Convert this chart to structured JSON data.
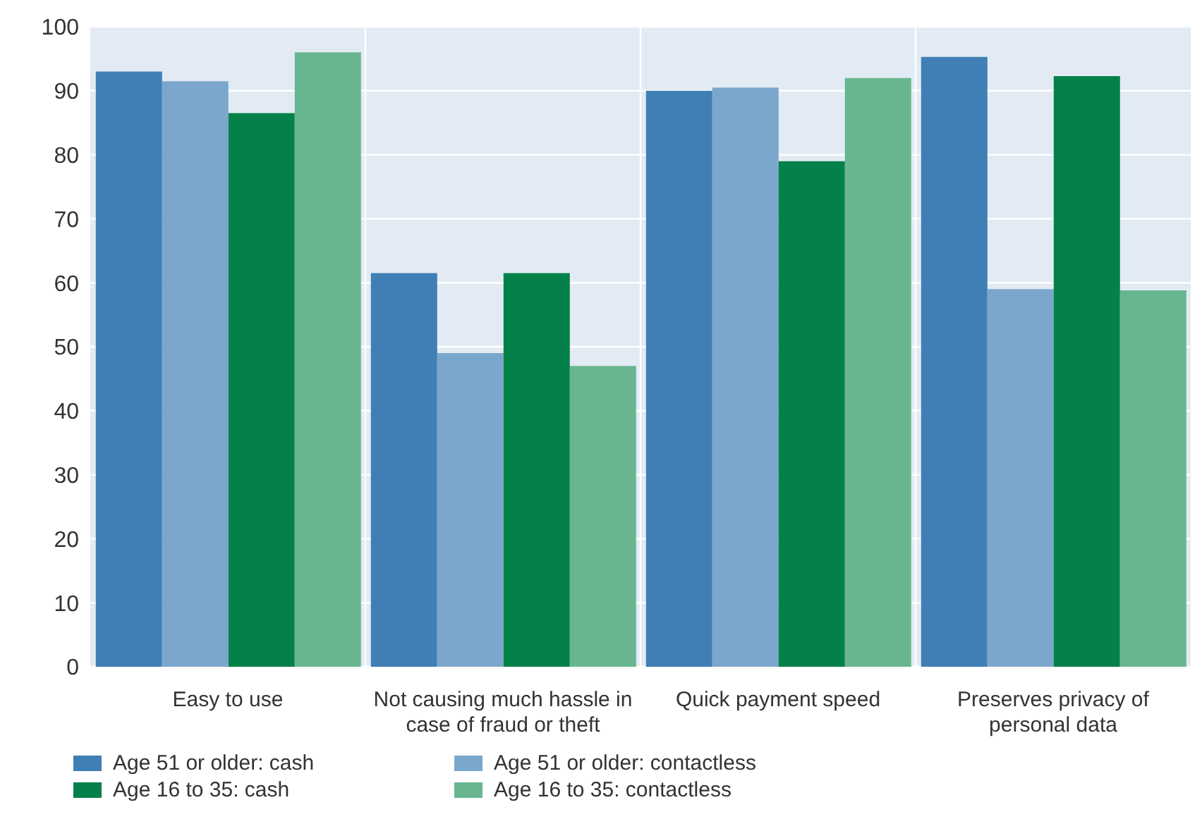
{
  "chart_data": {
    "type": "bar",
    "categories": [
      "Easy to use",
      "Not causing much hassle in case of fraud or theft",
      "Quick payment speed",
      "Preserves privacy of personal data"
    ],
    "series": [
      {
        "name": "Age 51 or older: cash",
        "color": "#3f7fb5",
        "values": [
          93,
          61.5,
          90,
          95.3
        ]
      },
      {
        "name": "Age 51 or older: contactless",
        "color": "#7ba7cc",
        "values": [
          91.5,
          49,
          90.5,
          59
        ]
      },
      {
        "name": "Age 16 to 35: cash",
        "color": "#048148",
        "values": [
          86.5,
          61.5,
          79,
          92.3
        ]
      },
      {
        "name": "Age 16 to 35: contactless",
        "color": "#68b690",
        "values": [
          96,
          47,
          92,
          58.8
        ]
      }
    ],
    "ylim": [
      0,
      100
    ],
    "yticks": [
      0,
      10,
      20,
      30,
      40,
      50,
      60,
      70,
      80,
      90,
      100
    ],
    "grid": true,
    "legend": "bottom"
  }
}
